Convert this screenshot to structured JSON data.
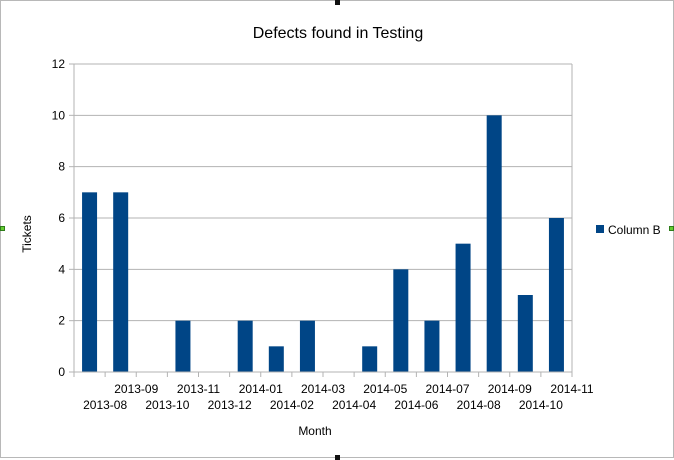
{
  "chart_data": {
    "type": "bar",
    "title": "Defects found in Testing",
    "xlabel": "Month",
    "ylabel": "Tickets",
    "ylim": [
      0,
      12
    ],
    "yticks": [
      "0",
      "2",
      "4",
      "6",
      "8",
      "10",
      "12"
    ],
    "grid": true,
    "legend_position": "right",
    "categories": [
      "2013-08",
      "2013-09",
      "2013-10",
      "2013-11",
      "2013-12",
      "2014-01",
      "2014-02",
      "2014-03",
      "2014-04",
      "2014-05",
      "2014-06",
      "2014-07",
      "2014-08",
      "2014-09",
      "2014-10",
      "2014-11"
    ],
    "series": [
      {
        "name": "Column B",
        "color": "#004586",
        "values": [
          7,
          7,
          0,
          2,
          0,
          2,
          1,
          2,
          0,
          1,
          4,
          2,
          5,
          10,
          3,
          6
        ]
      }
    ]
  }
}
